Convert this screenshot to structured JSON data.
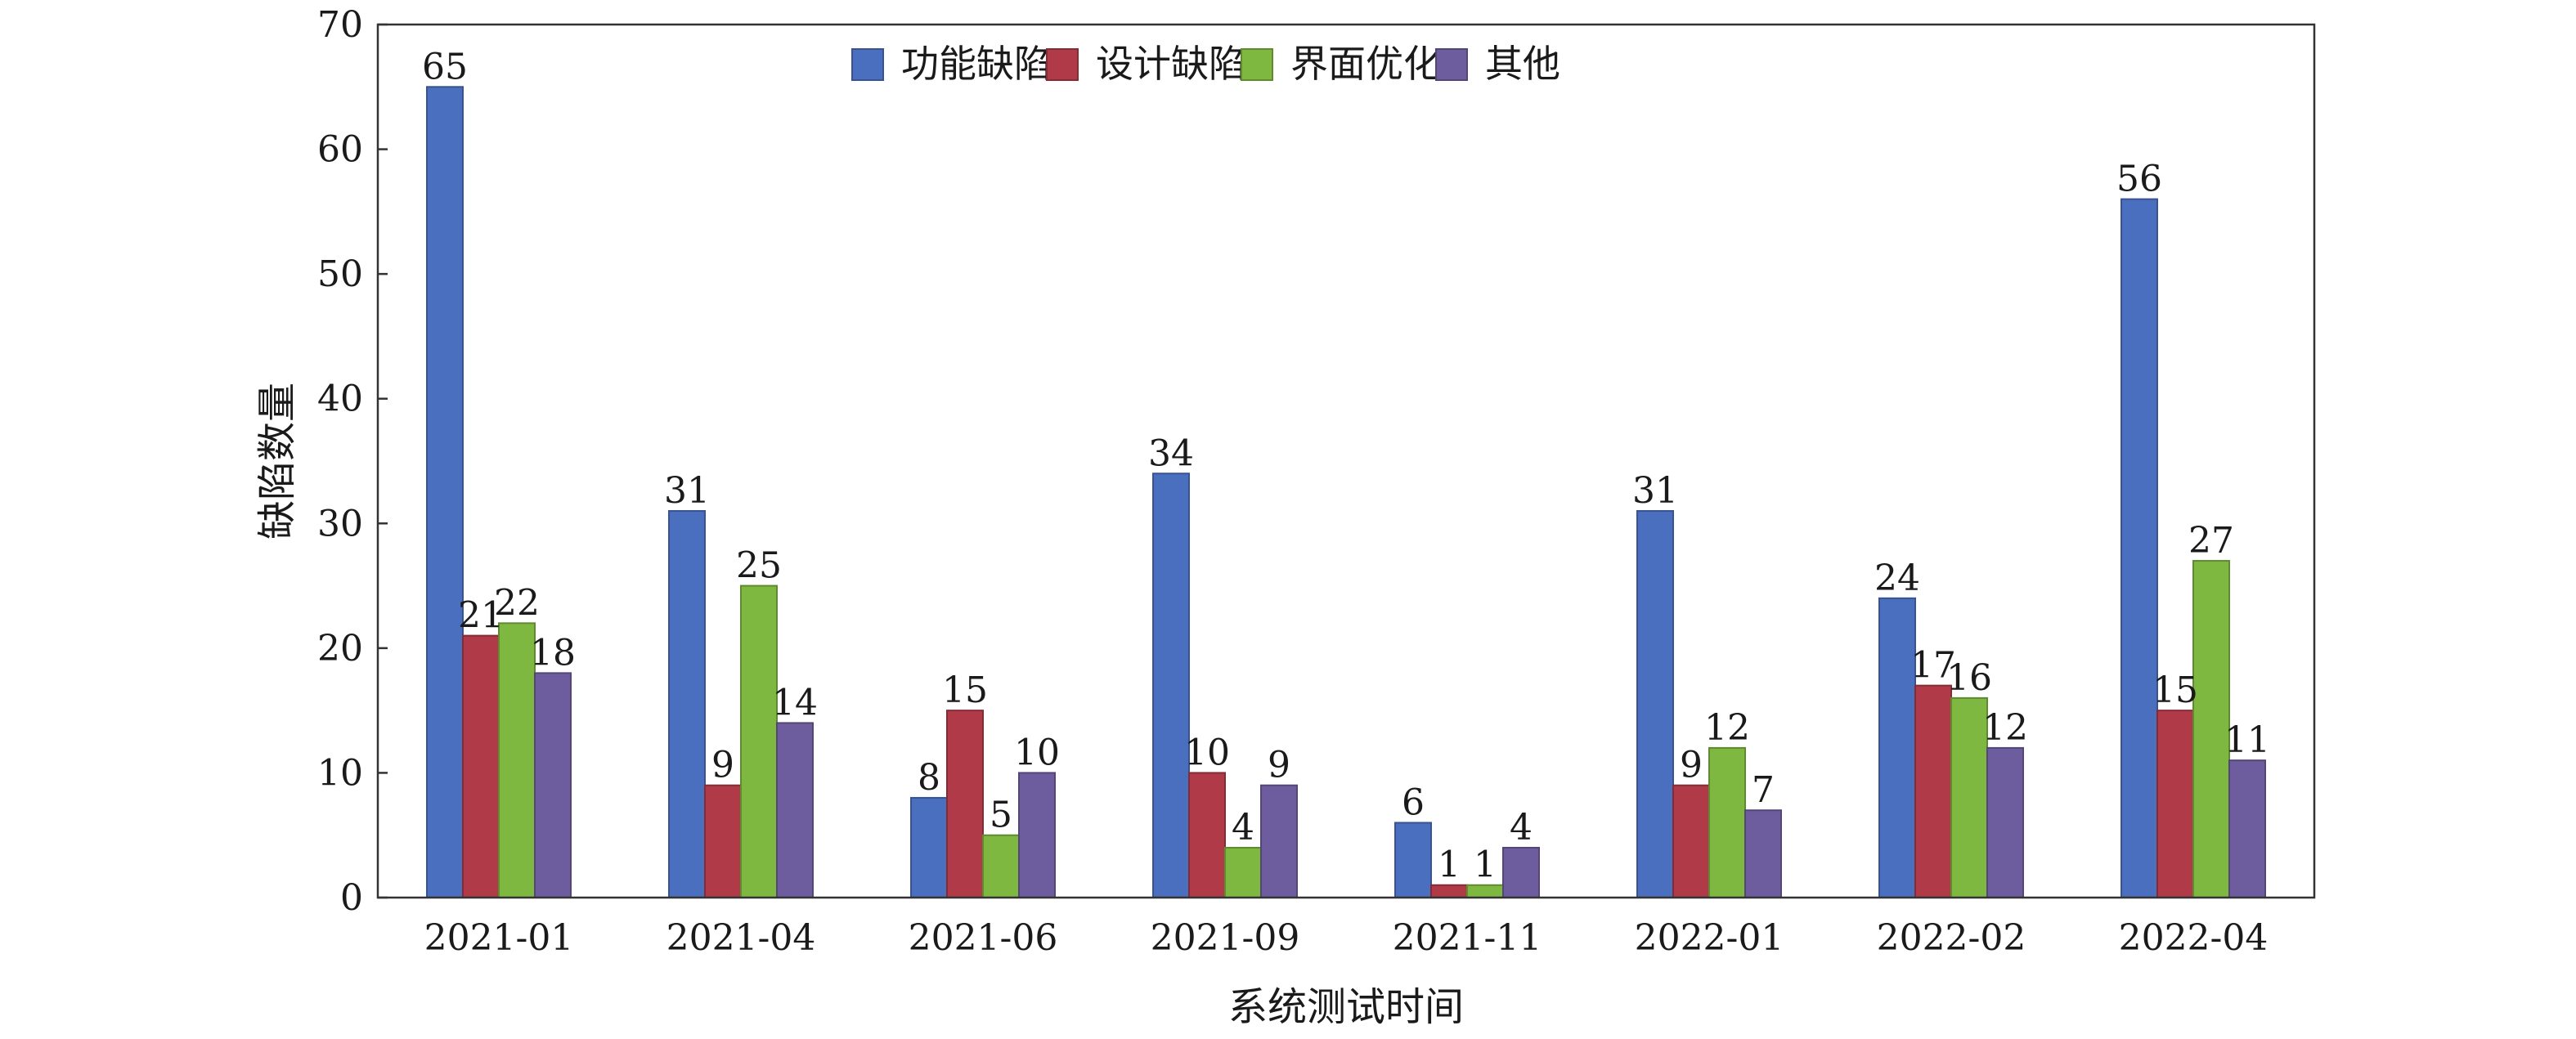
{
  "chart_data": {
    "type": "bar",
    "categories": [
      "2021-01",
      "2021-04",
      "2021-06",
      "2021-09",
      "2021-11",
      "2022-01",
      "2022-02",
      "2022-04"
    ],
    "series": [
      {
        "name": "功能缺陷",
        "color": "#4a6fbf",
        "values": [
          65,
          31,
          8,
          34,
          6,
          31,
          24,
          56
        ]
      },
      {
        "name": "设计缺陷",
        "color": "#b03a48",
        "values": [
          21,
          9,
          15,
          10,
          1,
          9,
          17,
          15
        ]
      },
      {
        "name": "界面优化",
        "color": "#7fb840",
        "values": [
          22,
          25,
          5,
          4,
          1,
          12,
          16,
          27
        ]
      },
      {
        "name": "其他",
        "color": "#6e5d9e",
        "values": [
          18,
          14,
          10,
          9,
          4,
          7,
          12,
          11
        ]
      }
    ],
    "xlabel": "系统测试时间",
    "ylabel": "缺陷数量",
    "ylim": [
      0,
      70
    ],
    "yticks": [
      0,
      10,
      20,
      30,
      40,
      50,
      60,
      70
    ],
    "legend_position": "top-center",
    "grid": false
  }
}
